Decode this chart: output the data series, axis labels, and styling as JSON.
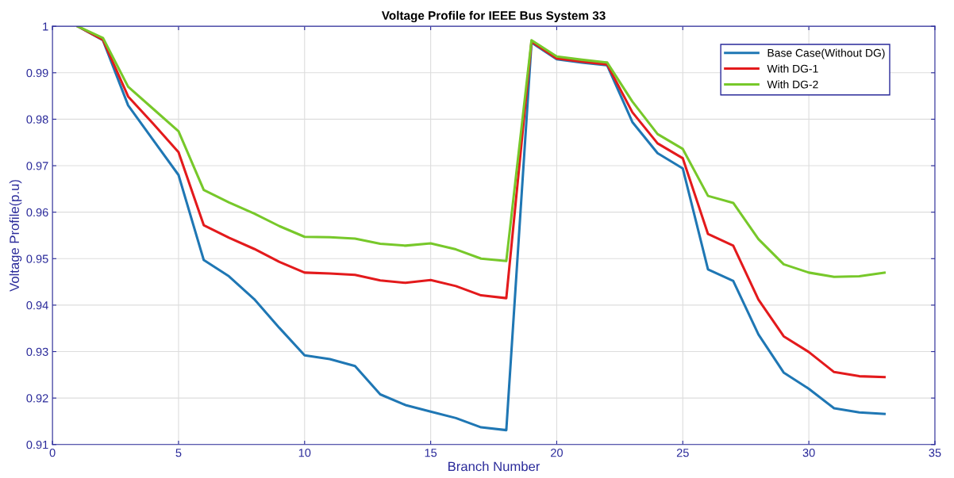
{
  "chart_data": {
    "type": "line",
    "title": "Voltage Profile for IEEE Bus System 33",
    "xlabel": "Branch Number",
    "ylabel": "Voltage Profile(p.u)",
    "x": [
      1,
      2,
      3,
      4,
      5,
      6,
      7,
      8,
      9,
      10,
      11,
      12,
      13,
      14,
      15,
      16,
      17,
      18,
      19,
      20,
      21,
      22,
      23,
      24,
      25,
      26,
      27,
      28,
      29,
      30,
      31,
      32,
      33
    ],
    "series": [
      {
        "name": "Base Case(Without DG)",
        "color": "#1f77b4",
        "values": [
          1,
          0.997,
          0.983,
          0.9755,
          0.968,
          0.9497,
          0.9462,
          0.9413,
          0.9351,
          0.9292,
          0.9284,
          0.9269,
          0.9208,
          0.9185,
          0.9171,
          0.9157,
          0.9137,
          0.9131,
          0.9965,
          0.9929,
          0.9922,
          0.9916,
          0.9794,
          0.9727,
          0.9694,
          0.9477,
          0.9452,
          0.9337,
          0.9255,
          0.922,
          0.9178,
          0.9169,
          0.9166
        ]
      },
      {
        "name": "With DG-1",
        "color": "#e31a1c",
        "values": [
          1,
          0.9971,
          0.9849,
          0.979,
          0.9729,
          0.9572,
          0.9545,
          0.9521,
          0.9493,
          0.947,
          0.9468,
          0.9465,
          0.9453,
          0.9448,
          0.9454,
          0.9441,
          0.9421,
          0.9415,
          0.9967,
          0.9931,
          0.9924,
          0.9918,
          0.9815,
          0.9748,
          0.9716,
          0.9553,
          0.9528,
          0.9412,
          0.9333,
          0.9299,
          0.9256,
          0.9247,
          0.9245
        ]
      },
      {
        "name": "With DG-2",
        "color": "#77c82a",
        "values": [
          1,
          0.9975,
          0.987,
          0.9822,
          0.9774,
          0.9648,
          0.9621,
          0.9597,
          0.957,
          0.9547,
          0.9546,
          0.9543,
          0.9532,
          0.9528,
          0.9533,
          0.952,
          0.95,
          0.9495,
          0.997,
          0.9935,
          0.9928,
          0.9922,
          0.9838,
          0.9768,
          0.9736,
          0.9635,
          0.962,
          0.9542,
          0.9488,
          0.947,
          0.9461,
          0.9462,
          0.947
        ]
      }
    ],
    "xlim": [
      0,
      35
    ],
    "xticks": [
      0,
      5,
      10,
      15,
      20,
      25,
      30,
      35
    ],
    "ylim": [
      0.91,
      1
    ],
    "yticks": [
      0.91,
      0.92,
      0.93,
      0.94,
      0.95,
      0.96,
      0.97,
      0.98,
      0.99,
      1
    ],
    "grid": true,
    "legend": "top right",
    "marker": "none",
    "line_style": "solid"
  }
}
